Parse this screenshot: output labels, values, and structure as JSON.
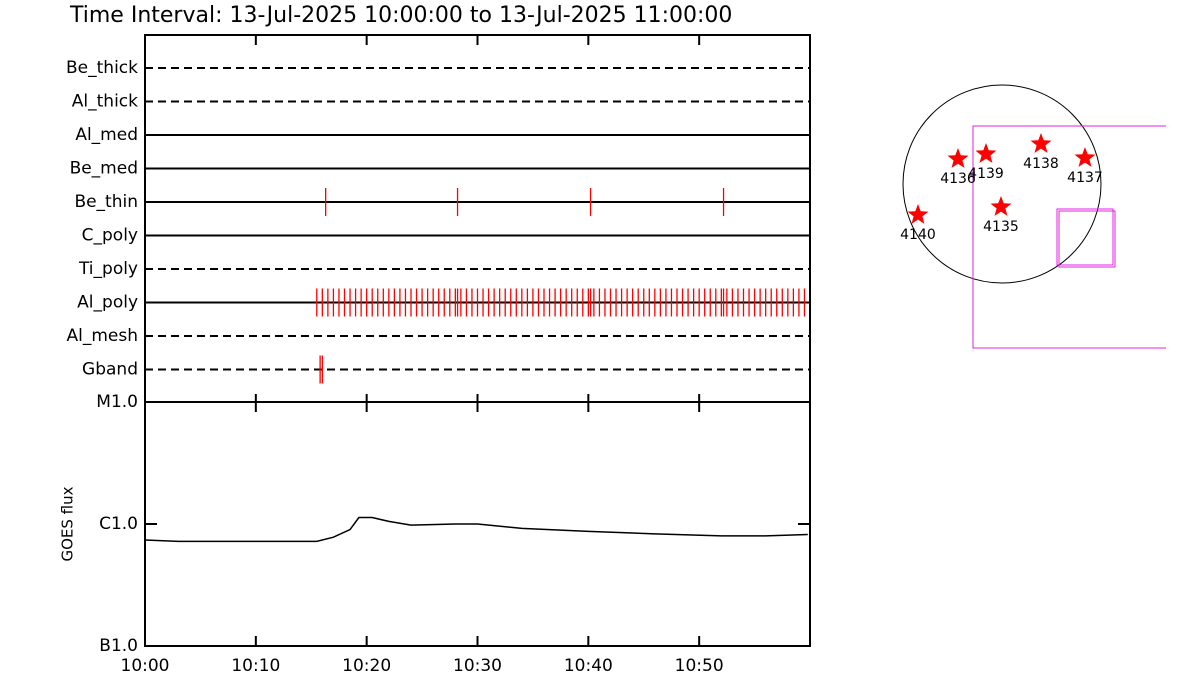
{
  "chart_data": [
    {
      "type": "timeline",
      "title": "Time Interval: 13-Jul-2025 10:00:00 to 13-Jul-2025 11:00:00",
      "xlim": [
        0,
        60
      ],
      "color": "#ff0000",
      "series": [
        {
          "name": "Be_thick",
          "line_style": "dashed",
          "values": []
        },
        {
          "name": "Al_thick",
          "line_style": "dashed",
          "values": []
        },
        {
          "name": "Al_med",
          "line_style": "solid",
          "values": []
        },
        {
          "name": "Be_med",
          "line_style": "solid",
          "values": []
        },
        {
          "name": "Be_thin",
          "line_style": "solid",
          "values": [
            16.3,
            28.2,
            40.2,
            52.2
          ]
        },
        {
          "name": "C_poly",
          "line_style": "solid",
          "values": []
        },
        {
          "name": "Ti_poly",
          "line_style": "dashed",
          "values": []
        },
        {
          "name": "Al_poly",
          "line_style": "solid",
          "values": [
            15.5,
            16,
            16.5,
            17,
            17.5,
            18,
            18.5,
            19,
            19.5,
            20,
            20.5,
            21,
            21.5,
            22,
            22.5,
            23,
            23.5,
            24,
            24.5,
            25,
            25.5,
            26,
            26.5,
            27,
            27.5,
            28,
            28.2,
            28.5,
            29,
            29.5,
            30,
            30.5,
            31,
            31.5,
            32,
            32.5,
            33,
            33.5,
            34,
            34.5,
            35,
            35.5,
            36,
            36.5,
            37,
            37.5,
            38,
            38.5,
            39,
            39.5,
            40,
            40.2,
            40.5,
            41,
            41.5,
            42,
            42.5,
            43,
            43.5,
            44,
            44.5,
            45,
            45.5,
            46,
            46.5,
            47,
            47.5,
            48,
            48.5,
            49,
            49.5,
            50,
            50.5,
            51,
            51.5,
            52,
            52.2,
            52.5,
            53,
            53.5,
            54,
            54.5,
            55,
            55.5,
            56,
            56.5,
            57,
            57.5,
            58,
            58.5,
            59,
            59.5
          ]
        },
        {
          "name": "Al_mesh",
          "line_style": "dashed",
          "values": []
        },
        {
          "name": "Gband",
          "line_style": "dashed",
          "values": [
            15.8,
            16.0
          ]
        }
      ]
    },
    {
      "type": "line",
      "ylabel": "GOES flux",
      "color": "#000000",
      "log_scale": true,
      "x": [
        0,
        3,
        10,
        15.5,
        17,
        18.5,
        19.3,
        20.5,
        22,
        24,
        28,
        30,
        34,
        40,
        46,
        52,
        56,
        59.8
      ],
      "values": [
        7.4e-07,
        7.2e-07,
        7.2e-07,
        7.2e-07,
        7.8e-07,
        9e-07,
        1.13e-06,
        1.13e-06,
        1.05e-06,
        9.8e-07,
        1e-06,
        1e-06,
        9.2e-07,
        8.7e-07,
        8.3e-07,
        8e-07,
        8e-07,
        8.2e-07
      ],
      "xlim": [
        0,
        60
      ],
      "xticks": [
        {
          "value": 0,
          "label": "10:00"
        },
        {
          "value": 10,
          "label": "10:10"
        },
        {
          "value": 20,
          "label": "10:20"
        },
        {
          "value": 30,
          "label": "10:30"
        },
        {
          "value": 40,
          "label": "10:40"
        },
        {
          "value": 50,
          "label": "10:50"
        }
      ],
      "ylim": [
        1e-07,
        1e-05
      ],
      "yticks": [
        {
          "value": 1e-05,
          "label": "M1.0"
        },
        {
          "value": 1e-06,
          "label": "C1.0"
        },
        {
          "value": 1e-07,
          "label": "B1.0"
        }
      ]
    },
    {
      "type": "scatter",
      "color": "#ff0000",
      "labels": [
        "4136",
        "4139",
        "4138",
        "4137",
        "4135",
        "4140"
      ],
      "x": [
        -423,
        -154,
        375,
        798,
        -10,
        -808
      ],
      "values": [
        240,
        288,
        385,
        250,
        -221,
        -298
      ]
    }
  ]
}
